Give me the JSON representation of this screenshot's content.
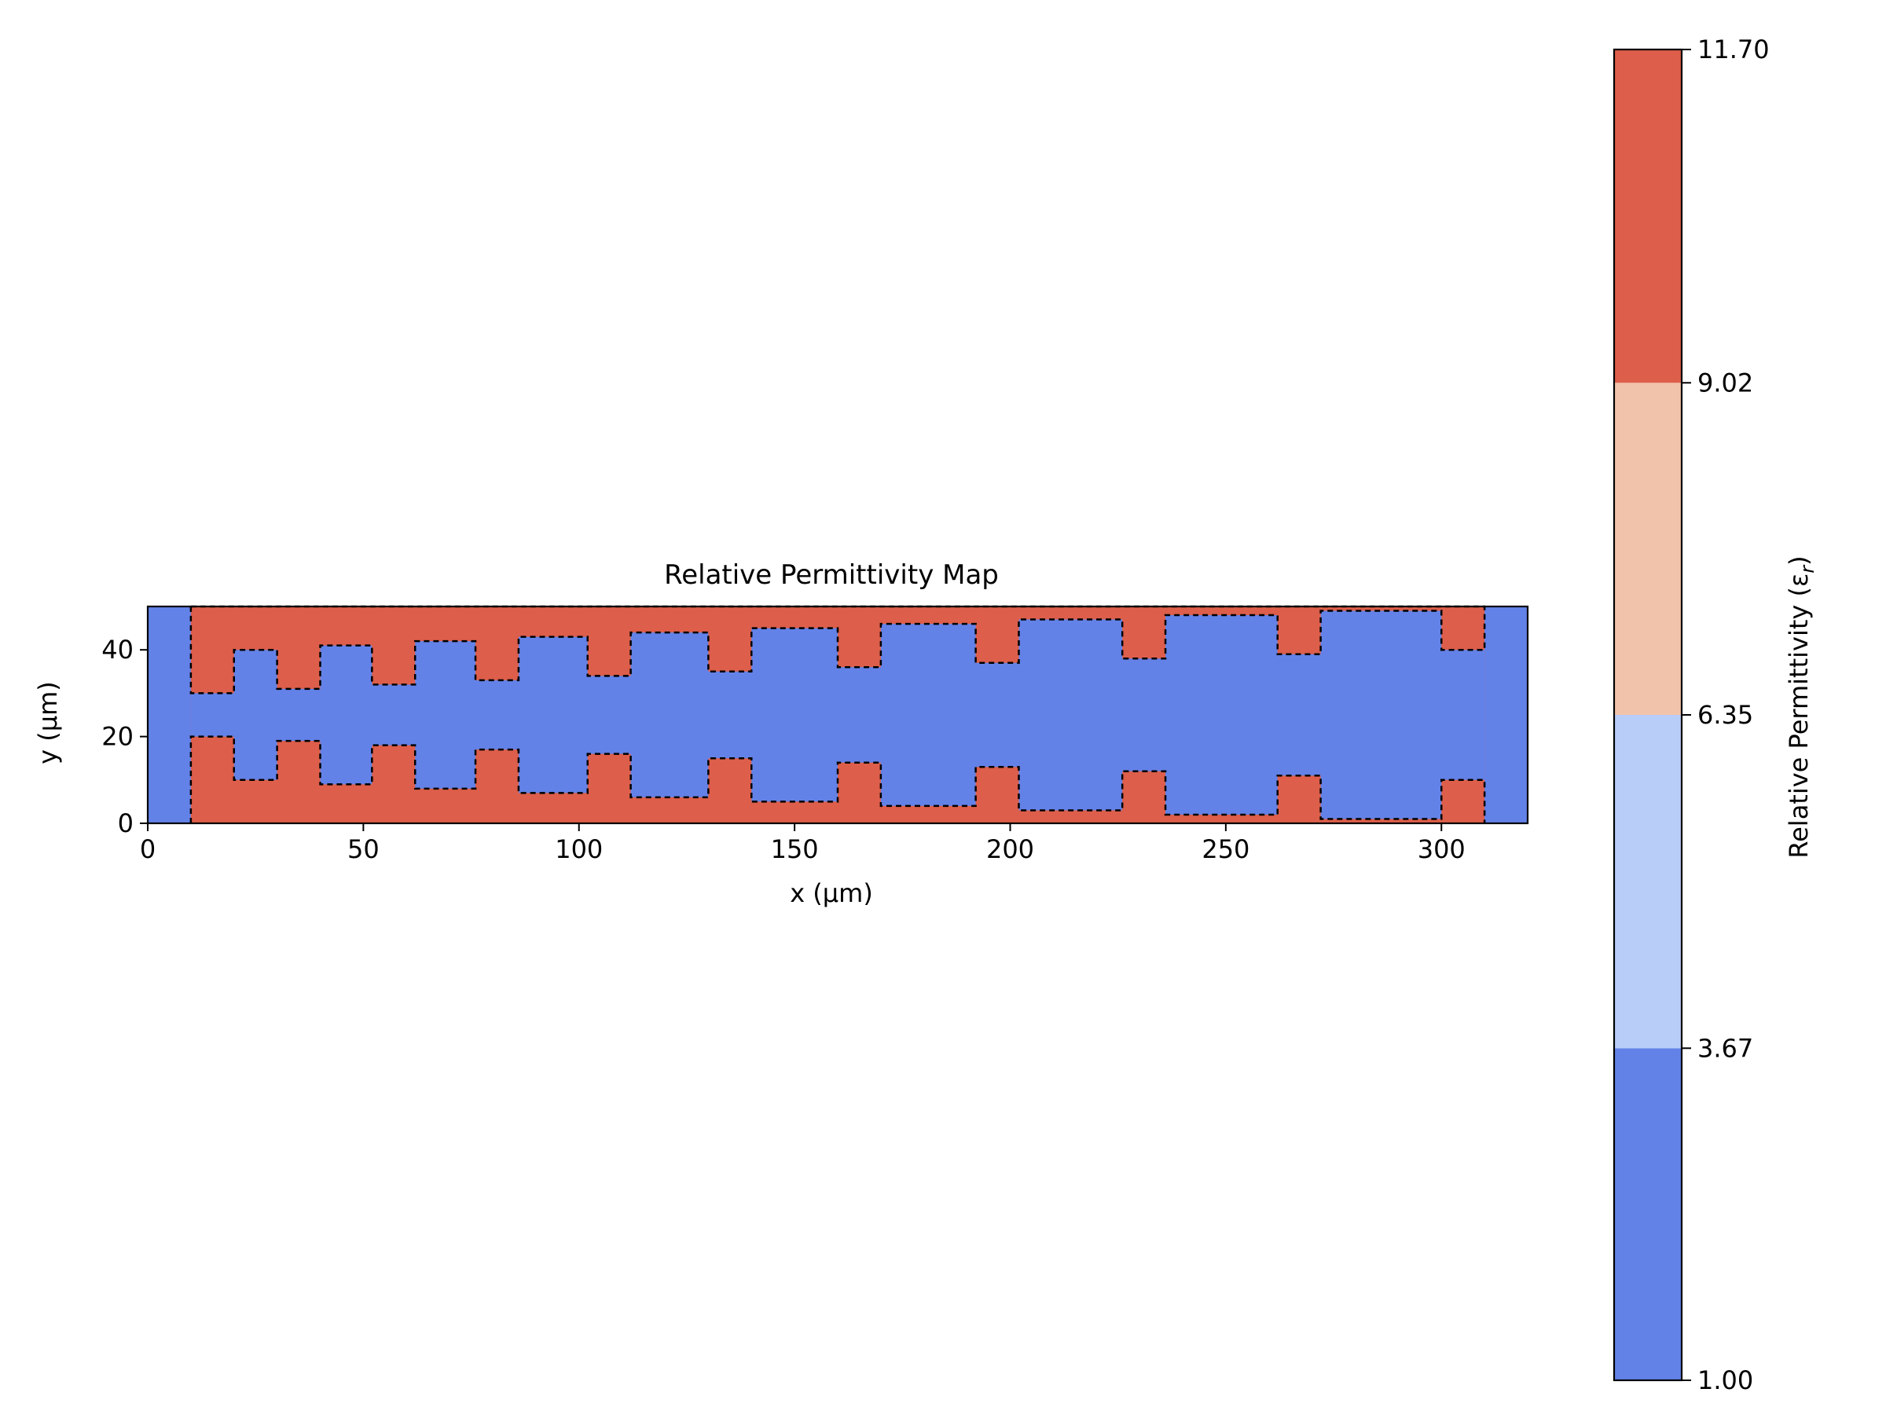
{
  "chart_data": {
    "type": "heatmap",
    "title": "Relative Permittivity Map",
    "xlabel": "x (µm)",
    "ylabel": "y (µm)",
    "xlim": [
      0,
      320
    ],
    "ylim": [
      0,
      50
    ],
    "xticks": [
      0,
      50,
      100,
      150,
      200,
      250,
      300
    ],
    "yticks": [
      0,
      20,
      40
    ],
    "xtick_labels": [
      "0",
      "50",
      "100",
      "150",
      "200",
      "250",
      "300"
    ],
    "ytick_labels": [
      "0",
      "20",
      "40"
    ],
    "background_permittivity": 1.0,
    "waveguide_permittivity": 11.7,
    "contour_style": "dashed black",
    "high_region_x": [
      10,
      310
    ],
    "top_teeth": [
      {
        "x0": 10,
        "x1": 20,
        "bottom": 30
      },
      {
        "x0": 30,
        "x1": 40,
        "bottom": 31
      },
      {
        "x0": 52,
        "x1": 62,
        "bottom": 32
      },
      {
        "x0": 76,
        "x1": 86,
        "bottom": 33
      },
      {
        "x0": 102,
        "x1": 112,
        "bottom": 34
      },
      {
        "x0": 130,
        "x1": 140,
        "bottom": 35
      },
      {
        "x0": 160,
        "x1": 170,
        "bottom": 36
      },
      {
        "x0": 192,
        "x1": 202,
        "bottom": 37
      },
      {
        "x0": 226,
        "x1": 236,
        "bottom": 38
      },
      {
        "x0": 262,
        "x1": 272,
        "bottom": 39
      },
      {
        "x0": 300,
        "x1": 310,
        "bottom": 40
      }
    ],
    "top_gaps": [
      {
        "x0": 20,
        "x1": 30,
        "bottom": 40
      },
      {
        "x0": 40,
        "x1": 52,
        "bottom": 41
      },
      {
        "x0": 62,
        "x1": 76,
        "bottom": 42
      },
      {
        "x0": 86,
        "x1": 102,
        "bottom": 43
      },
      {
        "x0": 112,
        "x1": 130,
        "bottom": 44
      },
      {
        "x0": 140,
        "x1": 160,
        "bottom": 45
      },
      {
        "x0": 170,
        "x1": 192,
        "bottom": 46
      },
      {
        "x0": 202,
        "x1": 226,
        "bottom": 47
      },
      {
        "x0": 236,
        "x1": 262,
        "bottom": 48
      },
      {
        "x0": 272,
        "x1": 300,
        "bottom": 49
      }
    ],
    "bottom_teeth": [
      {
        "x0": 10,
        "x1": 20,
        "top": 20
      },
      {
        "x0": 30,
        "x1": 40,
        "top": 19
      },
      {
        "x0": 52,
        "x1": 62,
        "top": 18
      },
      {
        "x0": 76,
        "x1": 86,
        "top": 17
      },
      {
        "x0": 102,
        "x1": 112,
        "top": 16
      },
      {
        "x0": 130,
        "x1": 140,
        "top": 15
      },
      {
        "x0": 160,
        "x1": 170,
        "top": 14
      },
      {
        "x0": 192,
        "x1": 202,
        "top": 13
      },
      {
        "x0": 226,
        "x1": 236,
        "top": 12
      },
      {
        "x0": 262,
        "x1": 272,
        "top": 11
      },
      {
        "x0": 300,
        "x1": 310,
        "top": 10
      }
    ],
    "bottom_gaps": [
      {
        "x0": 20,
        "x1": 30,
        "top": 10
      },
      {
        "x0": 40,
        "x1": 52,
        "top": 9
      },
      {
        "x0": 62,
        "x1": 76,
        "top": 8
      },
      {
        "x0": 86,
        "x1": 102,
        "top": 7
      },
      {
        "x0": 112,
        "x1": 130,
        "top": 6
      },
      {
        "x0": 140,
        "x1": 160,
        "top": 5
      },
      {
        "x0": 170,
        "x1": 192,
        "top": 4
      },
      {
        "x0": 202,
        "x1": 226,
        "top": 3
      },
      {
        "x0": 236,
        "x1": 262,
        "top": 2
      },
      {
        "x0": 272,
        "x1": 300,
        "top": 1
      }
    ],
    "colorbar": {
      "label": "Relative Permittivity (ε",
      "label_sub": "r",
      "label_close": ")",
      "min": 1.0,
      "max": 11.7,
      "levels": [
        1.0,
        3.67,
        6.35,
        9.02,
        11.7
      ],
      "tick_labels": [
        "1.00",
        "3.67",
        "6.35",
        "9.02",
        "11.70"
      ],
      "colors": [
        "#6382e8",
        "#b8cdf8",
        "#f2c3ab",
        "#dd5e4a"
      ]
    }
  }
}
